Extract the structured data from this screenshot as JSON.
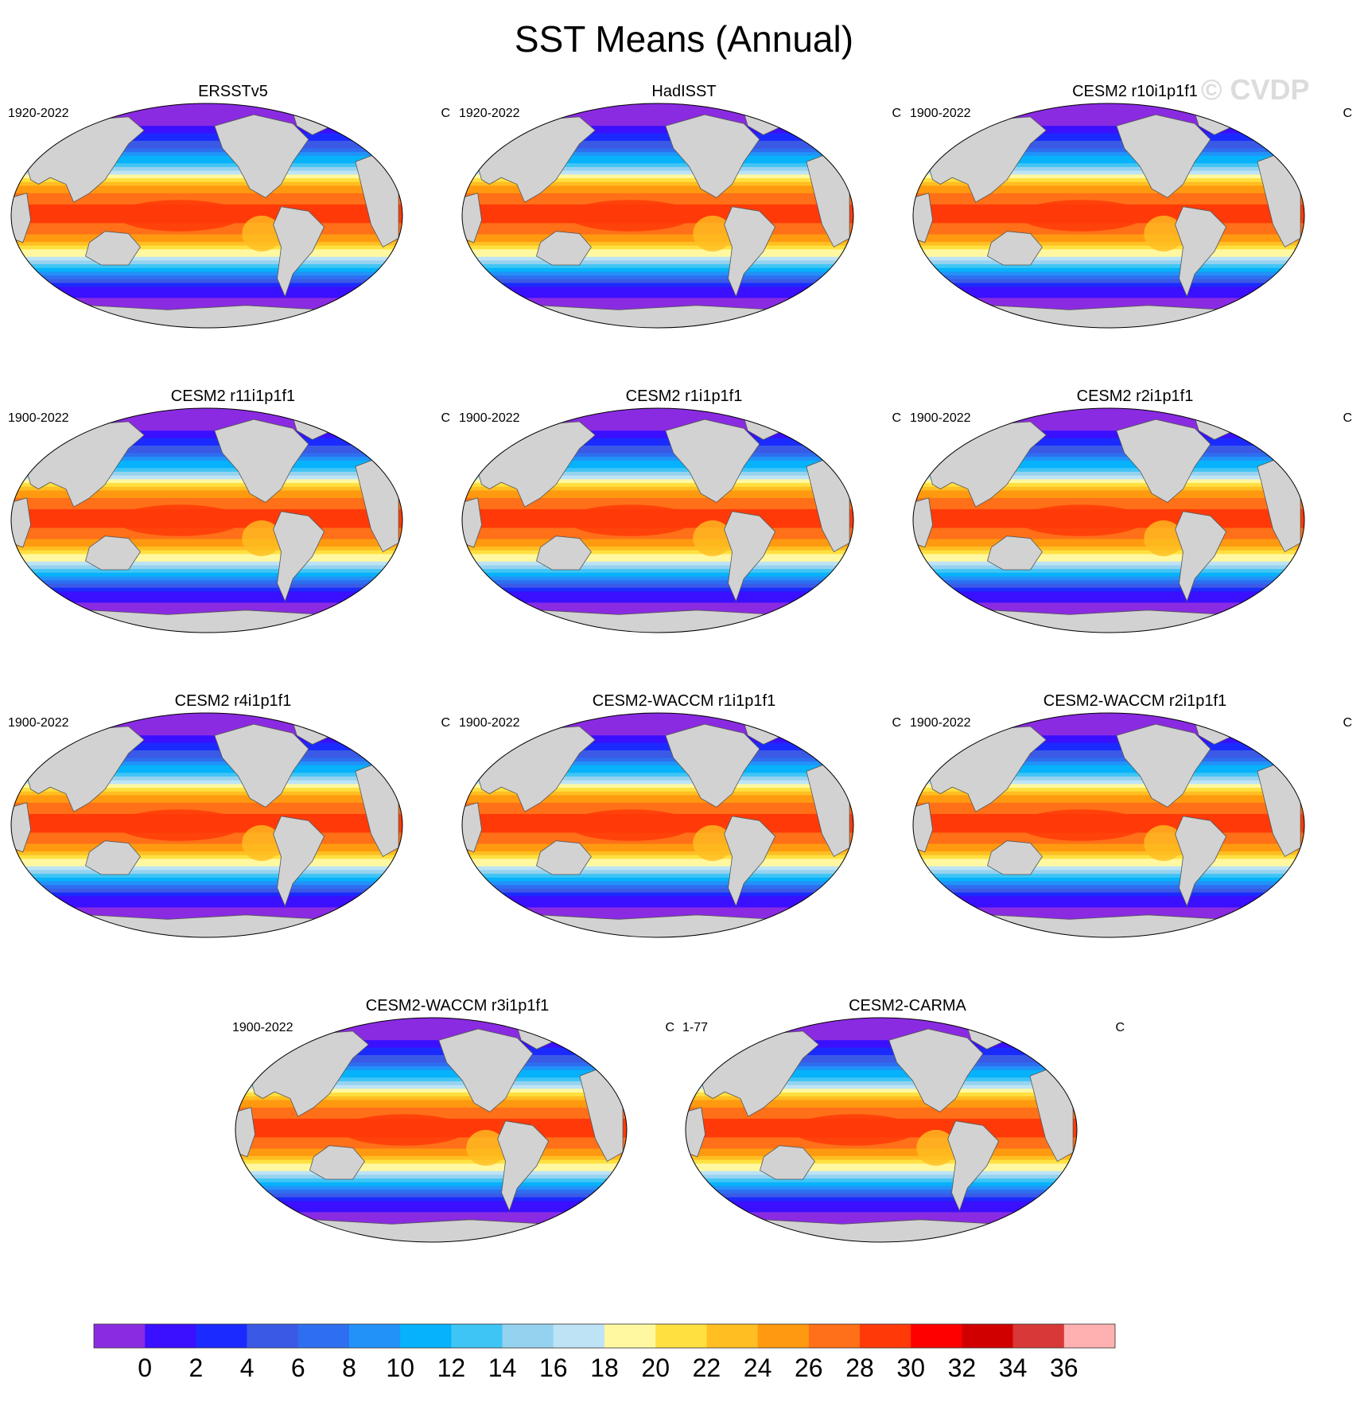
{
  "figure": {
    "title": "SST Means (Annual)",
    "watermark": "© CVDP",
    "land_color": "#d2d2d2",
    "missing_color": "#ffffff"
  },
  "panels": [
    {
      "name": "ERSSTv5",
      "period": "1920-2022",
      "units": "C"
    },
    {
      "name": "HadISST",
      "period": "1920-2022",
      "units": "C"
    },
    {
      "name": "CESM2 r10i1p1f1",
      "period": "1900-2022",
      "units": "C"
    },
    {
      "name": "CESM2 r11i1p1f1",
      "period": "1900-2022",
      "units": "C"
    },
    {
      "name": "CESM2 r1i1p1f1",
      "period": "1900-2022",
      "units": "C"
    },
    {
      "name": "CESM2 r2i1p1f1",
      "period": "1900-2022",
      "units": "C"
    },
    {
      "name": "CESM2 r4i1p1f1",
      "period": "1900-2022",
      "units": "C"
    },
    {
      "name": "CESM2-WACCM r1i1p1f1",
      "period": "1900-2022",
      "units": "C"
    },
    {
      "name": "CESM2-WACCM r2i1p1f1",
      "period": "1900-2022",
      "units": "C"
    },
    {
      "name": "CESM2-WACCM r3i1p1f1",
      "period": "1900-2022",
      "units": "C"
    },
    {
      "name": "CESM2-CARMA",
      "period": "1-77",
      "units": "C"
    }
  ],
  "chart_data": {
    "type": "heatmap",
    "projection": "Robinson, Pacific-centered",
    "variable": "SST annual mean",
    "units": "C",
    "approx_zonal_profile": {
      "lat": [
        -90,
        -75,
        -65,
        -55,
        -45,
        -35,
        -25,
        -15,
        -5,
        5,
        15,
        25,
        35,
        45,
        55,
        65,
        75,
        90
      ],
      "sst": [
        -1,
        -1,
        0,
        3,
        9,
        16,
        22,
        26,
        28,
        28.5,
        27,
        23,
        17,
        11,
        6,
        2,
        -1,
        -1
      ]
    },
    "colorbar": {
      "tick_labels": [
        "0",
        "2",
        "4",
        "6",
        "8",
        "10",
        "12",
        "14",
        "16",
        "18",
        "20",
        "22",
        "24",
        "26",
        "28",
        "30",
        "32",
        "34",
        "36"
      ],
      "colors": [
        "#8a2be2",
        "#3b0fff",
        "#1b2bff",
        "#3a5ae6",
        "#2e6ef0",
        "#2292f8",
        "#06b2fb",
        "#3fc5f5",
        "#95d2ef",
        "#bde3f5",
        "#fff8a0",
        "#ffe040",
        "#ffbe22",
        "#ff9a10",
        "#ff7018",
        "#ff3a08",
        "#ff0000",
        "#d00000",
        "#d83838",
        "#ffb0b0"
      ]
    }
  }
}
